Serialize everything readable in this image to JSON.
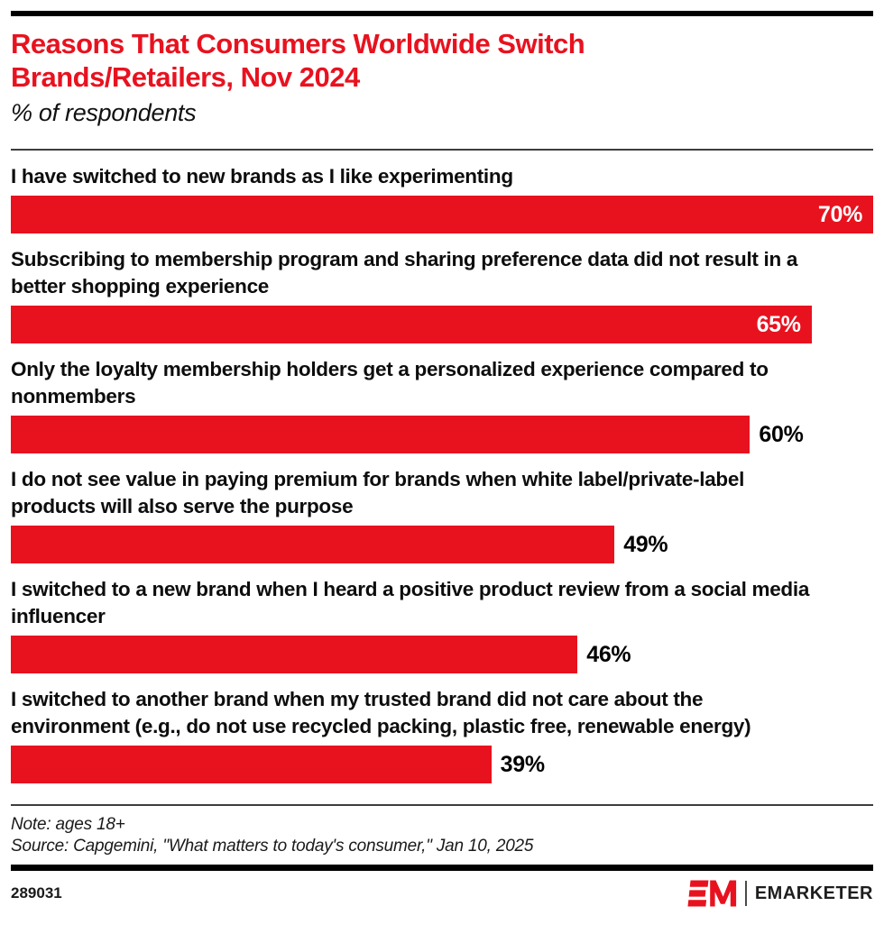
{
  "header": {
    "title": "Reasons That Consumers Worldwide Switch Brands/Retailers, Nov 2024",
    "subtitle": "% of respondents"
  },
  "chart_data": {
    "type": "bar",
    "orientation": "horizontal",
    "title": "Reasons That Consumers Worldwide Switch Brands/Retailers, Nov 2024",
    "subtitle": "% of respondents",
    "unit": "%",
    "xlim": [
      0,
      70
    ],
    "bar_color": "#e8121f",
    "grid": false,
    "legend": false,
    "categories": [
      "I have switched to new brands as I like experimenting",
      "Subscribing to membership program and sharing preference data did not result in a better shopping experience",
      "Only the loyalty membership holders get a personalized experience compared to nonmembers",
      "I do not see value in paying premium for brands when white label/private-label products will also serve the purpose",
      "I switched to a new brand when I heard a positive product review from a social media influencer",
      "I switched to another brand when my trusted brand did not care about the environment (e.g., do not use recycled packing, plastic free, renewable energy)"
    ],
    "values": [
      70,
      65,
      60,
      49,
      46,
      39
    ],
    "value_labels": [
      "70%",
      "65%",
      "60%",
      "49%",
      "46%",
      "39%"
    ],
    "value_label_inside": [
      true,
      true,
      false,
      false,
      false,
      false
    ]
  },
  "footer": {
    "note": "Note: ages 18+",
    "source": "Source: Capgemini, \"What matters to today's consumer,\" Jan 10, 2025",
    "chart_id": "289031",
    "brand_word": "EMARKETER"
  },
  "colors": {
    "accent_red": "#e8121f",
    "rule_black": "#000000"
  }
}
